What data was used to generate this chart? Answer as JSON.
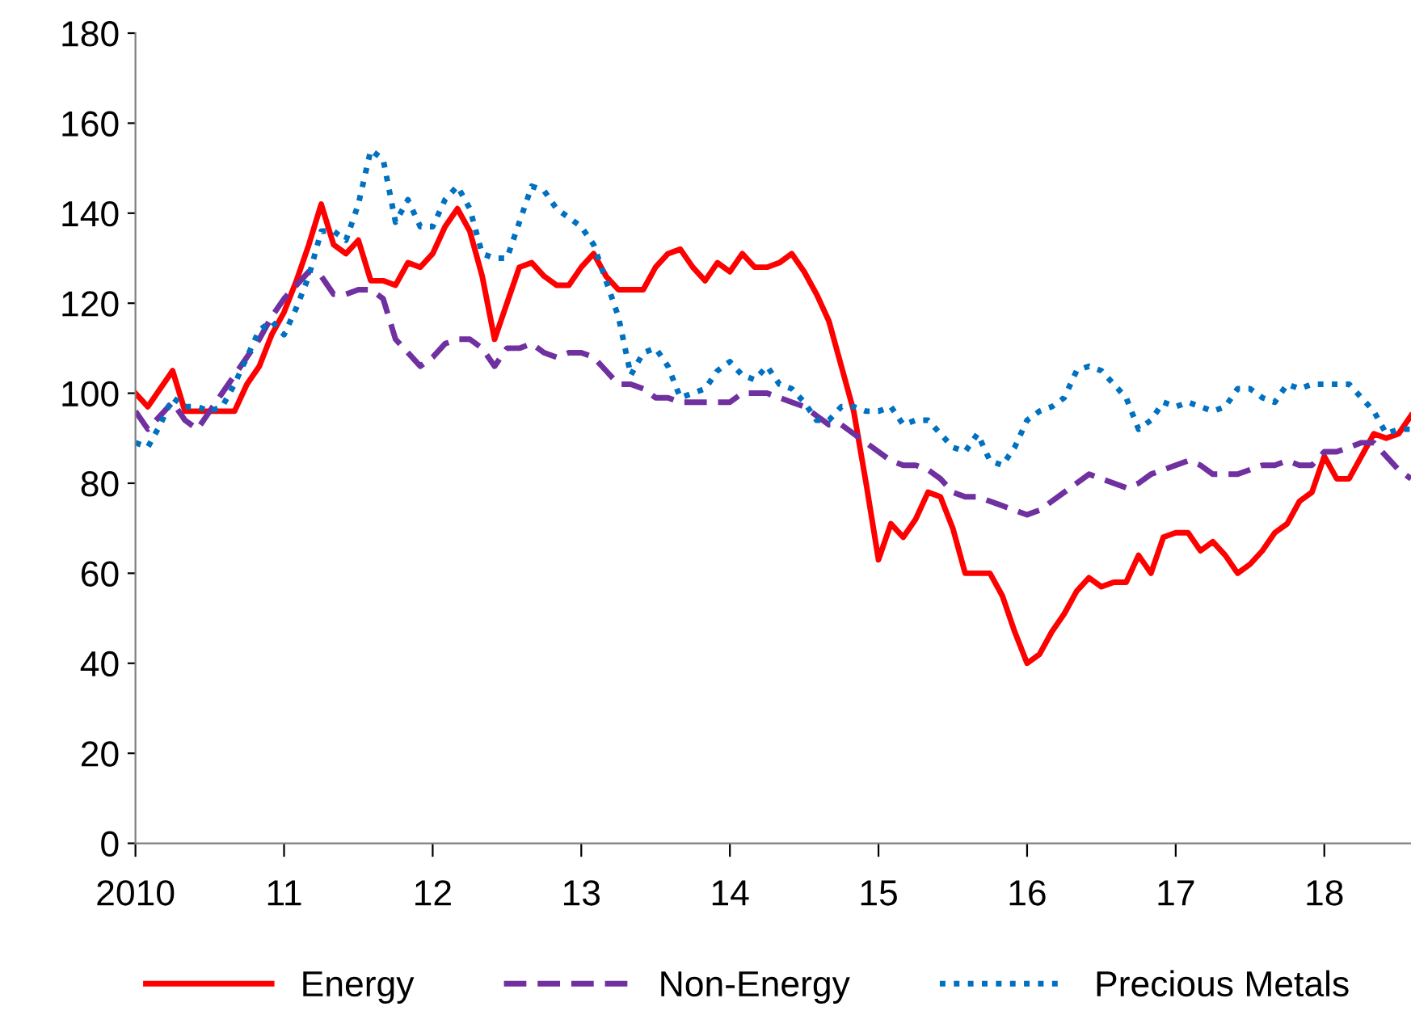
{
  "chart_data": {
    "type": "line",
    "x": [
      "2010-01",
      "2010-02",
      "2010-03",
      "2010-04",
      "2010-05",
      "2010-06",
      "2010-07",
      "2010-08",
      "2010-09",
      "2010-10",
      "2010-11",
      "2010-12",
      "2011-01",
      "2011-02",
      "2011-03",
      "2011-04",
      "2011-05",
      "2011-06",
      "2011-07",
      "2011-08",
      "2011-09",
      "2011-10",
      "2011-11",
      "2011-12",
      "2012-01",
      "2012-02",
      "2012-03",
      "2012-04",
      "2012-05",
      "2012-06",
      "2012-07",
      "2012-08",
      "2012-09",
      "2012-10",
      "2012-11",
      "2012-12",
      "2013-01",
      "2013-02",
      "2013-03",
      "2013-04",
      "2013-05",
      "2013-06",
      "2013-07",
      "2013-08",
      "2013-09",
      "2013-10",
      "2013-11",
      "2013-12",
      "2014-01",
      "2014-02",
      "2014-03",
      "2014-04",
      "2014-05",
      "2014-06",
      "2014-07",
      "2014-08",
      "2014-09",
      "2014-10",
      "2014-11",
      "2014-12",
      "2015-01",
      "2015-02",
      "2015-03",
      "2015-04",
      "2015-05",
      "2015-06",
      "2015-07",
      "2015-08",
      "2015-09",
      "2015-10",
      "2015-11",
      "2015-12",
      "2016-01",
      "2016-02",
      "2016-03",
      "2016-04",
      "2016-05",
      "2016-06",
      "2016-07",
      "2016-08",
      "2016-09",
      "2016-10",
      "2016-11",
      "2016-12",
      "2017-01",
      "2017-02",
      "2017-03",
      "2017-04",
      "2017-05",
      "2017-06",
      "2017-07",
      "2017-08",
      "2017-09",
      "2017-10",
      "2017-11",
      "2017-12",
      "2018-01",
      "2018-02",
      "2018-03",
      "2018-04",
      "2018-05",
      "2018-06",
      "2018-07",
      "2018-08"
    ],
    "series": [
      {
        "name": "Energy",
        "color": "#ff0000",
        "line_style": "solid",
        "values": [
          100,
          97,
          101,
          105,
          96,
          96,
          96,
          96,
          96,
          102,
          106,
          113,
          118,
          125,
          133,
          142,
          133,
          131,
          134,
          125,
          125,
          124,
          129,
          128,
          131,
          137,
          141,
          136,
          126,
          112,
          120,
          128,
          129,
          126,
          124,
          124,
          128,
          131,
          126,
          123,
          123,
          123,
          128,
          131,
          132,
          128,
          125,
          129,
          127,
          131,
          128,
          128,
          129,
          131,
          127,
          122,
          116,
          106,
          96,
          80,
          63,
          71,
          68,
          72,
          78,
          77,
          70,
          60,
          60,
          60,
          55,
          47,
          40,
          42,
          47,
          51,
          56,
          59,
          57,
          58,
          58,
          64,
          60,
          68,
          69,
          69,
          65,
          67,
          64,
          60,
          62,
          65,
          69,
          71,
          76,
          78,
          86,
          81,
          81,
          86,
          91,
          90,
          91,
          95
        ]
      },
      {
        "name": "Non-Energy",
        "color": "#7030a0",
        "line_style": "dashed",
        "values": [
          96,
          92,
          95,
          98,
          94,
          92,
          96,
          100,
          104,
          108,
          112,
          117,
          121,
          124,
          127,
          126,
          122,
          122,
          123,
          123,
          121,
          112,
          109,
          106,
          108,
          111,
          112,
          112,
          110,
          106,
          110,
          110,
          111,
          109,
          108,
          109,
          109,
          108,
          105,
          102,
          102,
          101,
          99,
          99,
          98,
          98,
          98,
          98,
          98,
          100,
          100,
          100,
          99,
          98,
          97,
          95,
          93,
          93,
          91,
          89,
          87,
          85,
          84,
          84,
          83,
          81,
          78,
          77,
          77,
          76,
          75,
          74,
          73,
          74,
          76,
          78,
          80,
          82,
          81,
          80,
          79,
          80,
          82,
          83,
          84,
          85,
          84,
          82,
          82,
          82,
          83,
          84,
          84,
          85,
          84,
          84,
          87,
          87,
          88,
          89,
          89,
          86,
          83,
          81
        ]
      },
      {
        "name": "Precious Metals",
        "color": "#0070c0",
        "line_style": "dotted",
        "values": [
          89,
          88,
          93,
          99,
          97,
          97,
          96,
          97,
          102,
          108,
          114,
          116,
          113,
          119,
          126,
          136,
          136,
          134,
          142,
          154,
          152,
          138,
          143,
          137,
          137,
          143,
          146,
          141,
          131,
          130,
          130,
          138,
          146,
          145,
          141,
          139,
          137,
          133,
          125,
          117,
          104,
          109,
          110,
          106,
          99,
          100,
          101,
          105,
          107,
          104,
          103,
          106,
          102,
          101,
          98,
          94,
          94,
          97,
          97,
          96,
          96,
          97,
          93,
          94,
          94,
          91,
          88,
          87,
          91,
          85,
          84,
          88,
          94,
          96,
          97,
          99,
          105,
          106,
          105,
          102,
          99,
          92,
          94,
          98,
          97,
          98,
          97,
          96,
          97,
          101,
          101,
          99,
          98,
          102,
          101,
          102,
          102,
          102,
          102,
          99,
          96,
          91,
          92,
          92
        ]
      }
    ],
    "xlim": [
      "2010-01",
      "2018-08"
    ],
    "xticks": [
      {
        "value": "2010-01",
        "label": "2010"
      },
      {
        "value": "2011-01",
        "label": "11"
      },
      {
        "value": "2012-01",
        "label": "12"
      },
      {
        "value": "2013-01",
        "label": "13"
      },
      {
        "value": "2014-01",
        "label": "14"
      },
      {
        "value": "2015-01",
        "label": "15"
      },
      {
        "value": "2016-01",
        "label": "16"
      },
      {
        "value": "2017-01",
        "label": "17"
      },
      {
        "value": "2018-01",
        "label": "18"
      }
    ],
    "ylim": [
      0,
      180
    ],
    "yticks": [
      0,
      20,
      40,
      60,
      80,
      100,
      120,
      140,
      160,
      180
    ],
    "grid": false,
    "legend": "bottom"
  }
}
